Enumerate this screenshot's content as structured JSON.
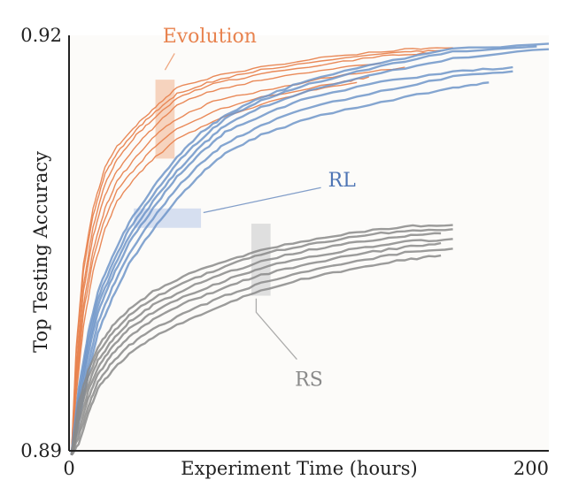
{
  "chart_data": {
    "type": "line",
    "title": "",
    "xlabel": "Experiment Time (hours)",
    "ylabel": "Top Testing Accuracy",
    "xlim": [
      0,
      200
    ],
    "ylim": [
      0.89,
      0.92
    ],
    "x_ticks": [
      "0",
      "200"
    ],
    "y_ticks": [
      "0.89",
      "0.92"
    ],
    "grid": false,
    "legend": "none",
    "colors": {
      "Evolution": "#e8834f",
      "RL": "#6f95c9",
      "RS": "#8a8a8a"
    },
    "groups": [
      {
        "label": "Evolution",
        "color": "#e8834f",
        "runs": [
          {
            "x": [
              1,
              3,
              6,
              10,
              15,
              20,
              28,
              36,
              45,
              60,
              80,
              110,
              140,
              160
            ],
            "y": [
              0.8897,
              0.8975,
              0.9035,
              0.9075,
              0.9105,
              0.912,
              0.9135,
              0.9148,
              0.9162,
              0.917,
              0.9177,
              0.9185,
              0.919,
              0.9191
            ]
          },
          {
            "x": [
              1,
              3,
              6,
              10,
              15,
              20,
              28,
              36,
              45,
              60,
              80,
              110,
              140,
              155
            ],
            "y": [
              0.8897,
              0.897,
              0.903,
              0.907,
              0.91,
              0.9115,
              0.9132,
              0.9145,
              0.9158,
              0.9167,
              0.9175,
              0.9183,
              0.9188,
              0.9189
            ]
          },
          {
            "x": [
              1,
              3,
              6,
              10,
              15,
              20,
              28,
              36,
              45,
              60,
              80,
              110,
              135,
              150
            ],
            "y": [
              0.8897,
              0.896,
              0.902,
              0.9062,
              0.9093,
              0.911,
              0.9128,
              0.9141,
              0.9155,
              0.9165,
              0.9172,
              0.918,
              0.9186,
              0.9187
            ]
          },
          {
            "x": [
              1,
              3,
              6,
              10,
              15,
              20,
              28,
              36,
              45,
              60,
              80,
              110,
              130
            ],
            "y": [
              0.8897,
              0.8955,
              0.9015,
              0.9055,
              0.9085,
              0.9102,
              0.912,
              0.9135,
              0.915,
              0.916,
              0.9168,
              0.9176,
              0.918
            ]
          },
          {
            "x": [
              1,
              3,
              6,
              10,
              15,
              20,
              28,
              36,
              45,
              60,
              80,
              110,
              140
            ],
            "y": [
              0.8897,
              0.895,
              0.9005,
              0.9045,
              0.9075,
              0.9095,
              0.9112,
              0.9128,
              0.914,
              0.9152,
              0.916,
              0.917,
              0.9177
            ]
          },
          {
            "x": [
              1,
              3,
              6,
              10,
              15,
              20,
              28,
              36,
              45,
              60,
              80,
              110,
              125
            ],
            "y": [
              0.8897,
              0.8945,
              0.9,
              0.9038,
              0.9068,
              0.9088,
              0.9105,
              0.912,
              0.9132,
              0.9145,
              0.9155,
              0.9165,
              0.917
            ]
          },
          {
            "x": [
              1,
              3,
              6,
              10,
              15,
              20,
              28,
              36,
              45,
              60,
              80,
              100,
              120
            ],
            "y": [
              0.8897,
              0.894,
              0.899,
              0.903,
              0.906,
              0.908,
              0.9098,
              0.9112,
              0.9125,
              0.9138,
              0.915,
              0.916,
              0.9166
            ]
          }
        ]
      },
      {
        "label": "RL",
        "color": "#6f95c9",
        "runs": [
          {
            "x": [
              1,
              4,
              8,
              12,
              18,
              25,
              35,
              45,
              55,
              65,
              80,
              100,
              130,
              160,
              200
            ],
            "y": [
              0.8897,
              0.8945,
              0.8985,
              0.9015,
              0.904,
              0.9065,
              0.909,
              0.9112,
              0.913,
              0.9142,
              0.9155,
              0.9168,
              0.918,
              0.919,
              0.9194
            ]
          },
          {
            "x": [
              1,
              4,
              8,
              12,
              18,
              25,
              35,
              45,
              55,
              65,
              80,
              100,
              130,
              160,
              195
            ],
            "y": [
              0.8897,
              0.894,
              0.898,
              0.901,
              0.9035,
              0.906,
              0.9085,
              0.9108,
              0.9125,
              0.914,
              0.9153,
              0.9165,
              0.9178,
              0.9188,
              0.9192
            ]
          },
          {
            "x": [
              1,
              4,
              8,
              12,
              18,
              25,
              35,
              45,
              55,
              65,
              80,
              100,
              130,
              160,
              200
            ],
            "y": [
              0.8897,
              0.8935,
              0.8975,
              0.9005,
              0.903,
              0.9055,
              0.908,
              0.9102,
              0.912,
              0.9135,
              0.9148,
              0.916,
              0.9173,
              0.9183,
              0.919
            ]
          },
          {
            "x": [
              1,
              4,
              8,
              12,
              18,
              25,
              35,
              45,
              55,
              65,
              80,
              100,
              130,
              160,
              185
            ],
            "y": [
              0.8897,
              0.893,
              0.897,
              0.9,
              0.9025,
              0.905,
              0.9075,
              0.9098,
              0.9115,
              0.913,
              0.9142,
              0.9155,
              0.9166,
              0.9174,
              0.9177
            ]
          },
          {
            "x": [
              1,
              4,
              8,
              12,
              18,
              25,
              35,
              45,
              55,
              65,
              80,
              100,
              130,
              160,
              185
            ],
            "y": [
              0.8897,
              0.8925,
              0.8962,
              0.8992,
              0.9018,
              0.9042,
              0.9068,
              0.909,
              0.9108,
              0.9122,
              0.9135,
              0.9148,
              0.916,
              0.917,
              0.9174
            ]
          },
          {
            "x": [
              1,
              4,
              8,
              12,
              18,
              25,
              35,
              45,
              55,
              65,
              80,
              100,
              130,
              160,
              175
            ],
            "y": [
              0.8897,
              0.892,
              0.8955,
              0.8985,
              0.901,
              0.9035,
              0.906,
              0.9082,
              0.91,
              0.9115,
              0.9128,
              0.914,
              0.9152,
              0.9162,
              0.9166
            ]
          }
        ]
      },
      {
        "label": "RS",
        "color": "#8a8a8a",
        "runs": [
          {
            "x": [
              1,
              4,
              8,
              12,
              18,
              25,
              35,
              50,
              65,
              80,
              100,
              120,
              140,
              160
            ],
            "y": [
              0.8897,
              0.8935,
              0.8958,
              0.8975,
              0.899,
              0.9002,
              0.9015,
              0.9028,
              0.9037,
              0.9045,
              0.9052,
              0.9058,
              0.9062,
              0.9063
            ]
          },
          {
            "x": [
              1,
              4,
              8,
              12,
              18,
              25,
              35,
              50,
              65,
              80,
              100,
              120,
              140,
              160
            ],
            "y": [
              0.8897,
              0.893,
              0.8953,
              0.897,
              0.8985,
              0.8998,
              0.901,
              0.9023,
              0.9033,
              0.9042,
              0.9049,
              0.9055,
              0.9059,
              0.906
            ]
          },
          {
            "x": [
              1,
              4,
              8,
              12,
              18,
              25,
              35,
              50,
              65,
              80,
              100,
              120,
              140,
              155
            ],
            "y": [
              0.8897,
              0.8925,
              0.8948,
              0.8965,
              0.898,
              0.8993,
              0.9005,
              0.9018,
              0.9028,
              0.9037,
              0.9045,
              0.9051,
              0.9055,
              0.9057
            ]
          },
          {
            "x": [
              1,
              4,
              8,
              12,
              18,
              25,
              35,
              50,
              65,
              80,
              100,
              120,
              140,
              160
            ],
            "y": [
              0.8897,
              0.892,
              0.8943,
              0.896,
              0.8975,
              0.8988,
              0.9,
              0.9013,
              0.9023,
              0.9032,
              0.904,
              0.9046,
              0.9051,
              0.9053
            ]
          },
          {
            "x": [
              1,
              4,
              8,
              12,
              18,
              25,
              35,
              50,
              65,
              80,
              100,
              120,
              140,
              155
            ],
            "y": [
              0.8897,
              0.8915,
              0.8938,
              0.8955,
              0.897,
              0.8982,
              0.8995,
              0.9008,
              0.9018,
              0.9027,
              0.9035,
              0.9042,
              0.9047,
              0.905
            ]
          },
          {
            "x": [
              1,
              4,
              8,
              12,
              18,
              25,
              35,
              50,
              65,
              80,
              100,
              120,
              140,
              160
            ],
            "y": [
              0.8897,
              0.891,
              0.8932,
              0.895,
              0.8964,
              0.8976,
              0.8988,
              0.9001,
              0.9012,
              0.9021,
              0.903,
              0.9037,
              0.9043,
              0.9046
            ]
          },
          {
            "x": [
              1,
              4,
              8,
              12,
              18,
              25,
              35,
              50,
              65,
              80,
              100,
              120,
              140,
              155
            ],
            "y": [
              0.8897,
              0.8905,
              0.8927,
              0.8945,
              0.8958,
              0.897,
              0.8982,
              0.8995,
              0.9006,
              0.9016,
              0.9025,
              0.9032,
              0.9038,
              0.9041
            ]
          }
        ]
      }
    ],
    "annotations": [
      {
        "text": "Evolution",
        "color": "#e8834f",
        "x": 39,
        "y": 0.9195,
        "anchor": "start",
        "pointer": [
          [
            44,
            0.9187
          ],
          [
            40,
            0.9175
          ]
        ],
        "band": {
          "x0": 36,
          "x1": 44,
          "y0": 0.9111,
          "y1": 0.9168,
          "fill": "#f4c6aa"
        }
      },
      {
        "text": "RL",
        "color": "#4f76b5",
        "x": 108,
        "y": 0.9091,
        "anchor": "start",
        "pointer": [
          [
            105,
            0.909
          ],
          [
            56,
            0.9072
          ]
        ],
        "band": {
          "x0": 27,
          "x1": 55,
          "y0": 0.9061,
          "y1": 0.9075,
          "fill": "#c9d6ec"
        }
      },
      {
        "text": "RS",
        "color": "#8a8a8a",
        "x": 100,
        "y": 0.8947,
        "anchor": "middle",
        "pointer": [
          [
            95,
            0.8966
          ],
          [
            78,
            0.9
          ],
          [
            78,
            0.901
          ]
        ],
        "band": {
          "x0": 76,
          "x1": 84,
          "y0": 0.9012,
          "y1": 0.9064,
          "fill": "#d6d6d6"
        }
      }
    ]
  }
}
